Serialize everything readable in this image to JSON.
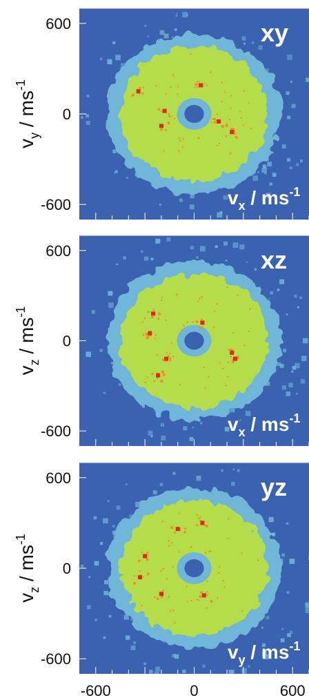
{
  "chart_data": [
    {
      "type": "heatmap",
      "panel_label": "xy",
      "x_label_base": "v",
      "x_label_sub": "x",
      "x_label_unit": " / ms",
      "x_label_sup": "-1",
      "y_label_base": "v",
      "y_label_sub": "y",
      "y_label_unit": " / ms",
      "y_label_sup": "-1",
      "y_ticks": [
        "600",
        "0",
        "-600"
      ],
      "y_tick_values": [
        600,
        0,
        -600
      ],
      "ylim": [
        -700,
        700
      ],
      "xlim": [
        -700,
        700
      ],
      "distribution": {
        "shape": "ring",
        "center": [
          0,
          0
        ],
        "outer_radius": 520,
        "hole_radius": 70
      },
      "hot_spots": [
        [
          -340,
          150
        ],
        [
          -180,
          20
        ],
        [
          -200,
          -80
        ],
        [
          150,
          -50
        ],
        [
          230,
          -120
        ],
        [
          40,
          190
        ]
      ],
      "colorscale": [
        "#3a62b0",
        "#6fb6d8",
        "#b5dc4c",
        "#f28c1e",
        "#e3271c"
      ]
    },
    {
      "type": "heatmap",
      "panel_label": "xz",
      "x_label_base": "v",
      "x_label_sub": "x",
      "x_label_unit": " / ms",
      "x_label_sup": "-1",
      "y_label_base": "v",
      "y_label_sub": "z",
      "y_label_unit": " / ms",
      "y_label_sup": "-1",
      "y_ticks": [
        "600",
        "0",
        "-600"
      ],
      "y_tick_values": [
        600,
        0,
        -600
      ],
      "ylim": [
        -700,
        700
      ],
      "xlim": [
        -700,
        700
      ],
      "distribution": {
        "shape": "ring",
        "center": [
          0,
          0
        ],
        "outer_radius": 520,
        "hole_radius": 70
      },
      "hot_spots": [
        [
          -250,
          180
        ],
        [
          -270,
          50
        ],
        [
          -170,
          -120
        ],
        [
          -220,
          -230
        ],
        [
          50,
          120
        ],
        [
          230,
          -80
        ],
        [
          250,
          -120
        ]
      ],
      "colorscale": [
        "#3a62b0",
        "#6fb6d8",
        "#b5dc4c",
        "#f28c1e",
        "#e3271c"
      ]
    },
    {
      "type": "heatmap",
      "panel_label": "yz",
      "x_label_base": "v",
      "x_label_sub": "y",
      "x_label_unit": " / ms",
      "x_label_sup": "-1",
      "y_label_base": "v",
      "y_label_sub": "z",
      "y_label_unit": " / ms",
      "y_label_sup": "-1",
      "y_ticks": [
        "600",
        "0",
        "-600"
      ],
      "y_tick_values": [
        600,
        0,
        -600
      ],
      "ylim": [
        -700,
        700
      ],
      "xlim": [
        -700,
        700
      ],
      "x_ticks": [
        "-600",
        "0",
        "600"
      ],
      "x_tick_values": [
        -600,
        0,
        600
      ],
      "distribution": {
        "shape": "ring",
        "center": [
          0,
          0
        ],
        "outer_radius": 520,
        "hole_radius": 70
      },
      "hot_spots": [
        [
          -330,
          -60
        ],
        [
          -200,
          -170
        ],
        [
          -100,
          260
        ],
        [
          50,
          300
        ],
        [
          60,
          -180
        ],
        [
          -300,
          80
        ]
      ],
      "colorscale": [
        "#3a62b0",
        "#6fb6d8",
        "#b5dc4c",
        "#f28c1e",
        "#e3271c"
      ]
    }
  ]
}
